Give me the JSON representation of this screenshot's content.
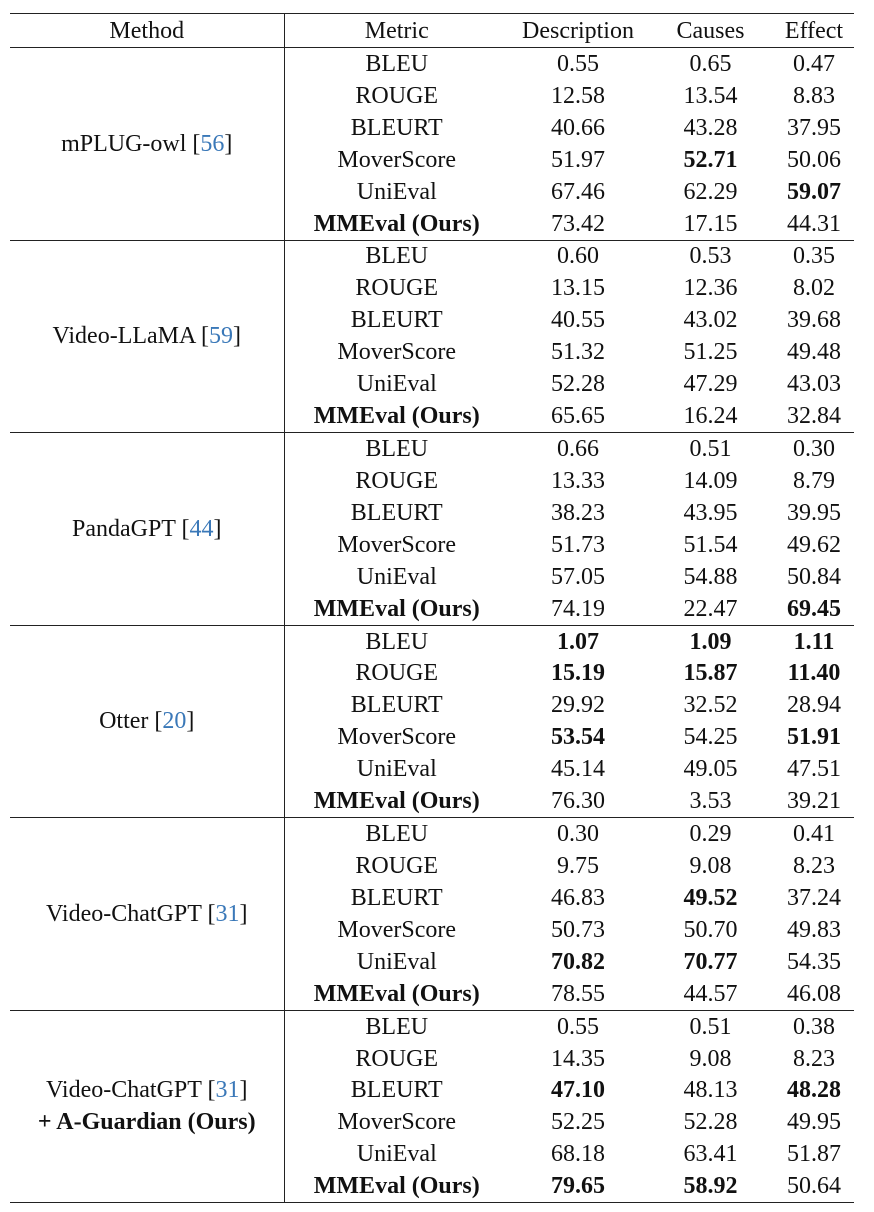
{
  "headers": [
    "Method",
    "Metric",
    "Description",
    "Causes",
    "Effect"
  ],
  "groups": [
    {
      "name": "mPLUG-owl",
      "ref": "56",
      "rows": [
        {
          "metric": "BLEU",
          "description": "0.55",
          "causes": "0.65",
          "effect": "0.47"
        },
        {
          "metric": "ROUGE",
          "description": "12.58",
          "causes": "13.54",
          "effect": "8.83"
        },
        {
          "metric": "BLEURT",
          "description": "40.66",
          "causes": "43.28",
          "effect": "37.95"
        },
        {
          "metric": "MoverScore",
          "description": "51.97",
          "causes": "52.71",
          "effect": "50.06",
          "bold": [
            "causes"
          ]
        },
        {
          "metric": "UniEval",
          "description": "67.46",
          "causes": "62.29",
          "effect": "59.07",
          "bold": [
            "effect"
          ]
        },
        {
          "metric": "MMEval (Ours)",
          "description": "73.42",
          "causes": "17.15",
          "effect": "44.31",
          "bold": [
            "metric"
          ]
        }
      ]
    },
    {
      "name": "Video-LLaMA",
      "ref": "59",
      "rows": [
        {
          "metric": "BLEU",
          "description": "0.60",
          "causes": "0.53",
          "effect": "0.35"
        },
        {
          "metric": "ROUGE",
          "description": "13.15",
          "causes": "12.36",
          "effect": "8.02"
        },
        {
          "metric": "BLEURT",
          "description": "40.55",
          "causes": "43.02",
          "effect": "39.68"
        },
        {
          "metric": "MoverScore",
          "description": "51.32",
          "causes": "51.25",
          "effect": "49.48"
        },
        {
          "metric": "UniEval",
          "description": "52.28",
          "causes": "47.29",
          "effect": "43.03"
        },
        {
          "metric": "MMEval (Ours)",
          "description": "65.65",
          "causes": "16.24",
          "effect": "32.84",
          "bold": [
            "metric"
          ]
        }
      ]
    },
    {
      "name": "PandaGPT",
      "ref": "44",
      "rows": [
        {
          "metric": "BLEU",
          "description": "0.66",
          "causes": "0.51",
          "effect": "0.30"
        },
        {
          "metric": "ROUGE",
          "description": "13.33",
          "causes": "14.09",
          "effect": "8.79"
        },
        {
          "metric": "BLEURT",
          "description": "38.23",
          "causes": "43.95",
          "effect": "39.95"
        },
        {
          "metric": "MoverScore",
          "description": "51.73",
          "causes": "51.54",
          "effect": "49.62"
        },
        {
          "metric": "UniEval",
          "description": "57.05",
          "causes": "54.88",
          "effect": "50.84"
        },
        {
          "metric": "MMEval (Ours)",
          "description": "74.19",
          "causes": "22.47",
          "effect": "69.45",
          "bold": [
            "metric",
            "effect"
          ]
        }
      ]
    },
    {
      "name": "Otter",
      "ref": "20",
      "rows": [
        {
          "metric": "BLEU",
          "description": "1.07",
          "causes": "1.09",
          "effect": "1.11",
          "bold": [
            "description",
            "causes",
            "effect"
          ]
        },
        {
          "metric": "ROUGE",
          "description": "15.19",
          "causes": "15.87",
          "effect": "11.40",
          "bold": [
            "description",
            "causes",
            "effect"
          ]
        },
        {
          "metric": "BLEURT",
          "description": "29.92",
          "causes": "32.52",
          "effect": "28.94"
        },
        {
          "metric": "MoverScore",
          "description": "53.54",
          "causes": "54.25",
          "effect": "51.91",
          "bold": [
            "description",
            "effect"
          ]
        },
        {
          "metric": "UniEval",
          "description": "45.14",
          "causes": "49.05",
          "effect": "47.51"
        },
        {
          "metric": "MMEval (Ours)",
          "description": "76.30",
          "causes": "3.53",
          "effect": "39.21",
          "bold": [
            "metric"
          ]
        }
      ]
    },
    {
      "name": "Video-ChatGPT",
      "ref": "31",
      "rows": [
        {
          "metric": "BLEU",
          "description": "0.30",
          "causes": "0.29",
          "effect": "0.41"
        },
        {
          "metric": "ROUGE",
          "description": "9.75",
          "causes": "9.08",
          "effect": "8.23"
        },
        {
          "metric": "BLEURT",
          "description": "46.83",
          "causes": "49.52",
          "effect": "37.24",
          "bold": [
            "causes"
          ]
        },
        {
          "metric": "MoverScore",
          "description": "50.73",
          "causes": "50.70",
          "effect": "49.83"
        },
        {
          "metric": "UniEval",
          "description": "70.82",
          "causes": "70.77",
          "effect": "54.35",
          "bold": [
            "description",
            "causes"
          ]
        },
        {
          "metric": "MMEval (Ours)",
          "description": "78.55",
          "causes": "44.57",
          "effect": "46.08",
          "bold": [
            "metric"
          ]
        }
      ]
    },
    {
      "name": "Video-ChatGPT",
      "ref": "31",
      "name2": "+ A-Guardian (Ours)",
      "rows": [
        {
          "metric": "BLEU",
          "description": "0.55",
          "causes": "0.51",
          "effect": "0.38"
        },
        {
          "metric": "ROUGE",
          "description": "14.35",
          "causes": "9.08",
          "effect": "8.23"
        },
        {
          "metric": "BLEURT",
          "description": "47.10",
          "causes": "48.13",
          "effect": "48.28",
          "bold": [
            "description",
            "effect"
          ]
        },
        {
          "metric": "MoverScore",
          "description": "52.25",
          "causes": "52.28",
          "effect": "49.95"
        },
        {
          "metric": "UniEval",
          "description": "68.18",
          "causes": "63.41",
          "effect": "51.87"
        },
        {
          "metric": "MMEval (Ours)",
          "description": "79.65",
          "causes": "58.92",
          "effect": "50.64",
          "bold": [
            "metric",
            "description",
            "causes"
          ]
        }
      ]
    }
  ]
}
